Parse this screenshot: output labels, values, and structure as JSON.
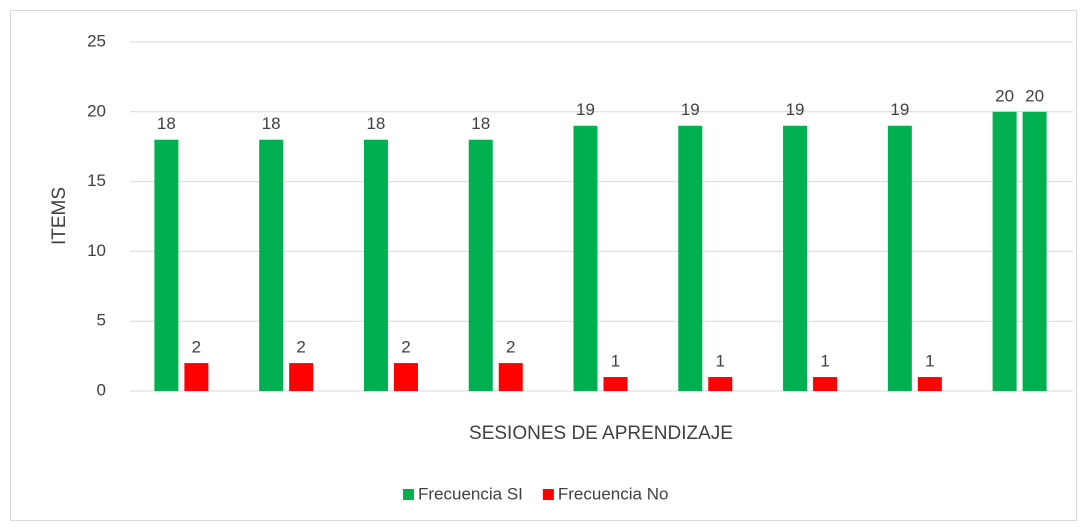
{
  "chart_data": {
    "type": "bar",
    "x_label": "SESIONES DE APRENDIZAJE",
    "y_label": "ITEMS",
    "categories": [
      null,
      null,
      null,
      null,
      null,
      null,
      null,
      null,
      null
    ],
    "series": [
      {
        "name": "Frecuencia SI",
        "color": "#00b050",
        "values": [
          18,
          18,
          18,
          18,
          19,
          19,
          19,
          19,
          20
        ]
      },
      {
        "name": "Frecuencia No",
        "color": "#ff0000",
        "colors": [
          "#ff0000",
          "#ff0000",
          "#ff0000",
          "#ff0000",
          "#ff0000",
          "#ff0000",
          "#ff0000",
          "#ff0000",
          "#00b050"
        ],
        "values": [
          2,
          2,
          2,
          2,
          1,
          1,
          1,
          1,
          20
        ]
      }
    ],
    "ylim": [
      0,
      25
    ],
    "yticks": [
      0,
      5,
      10,
      15,
      20,
      25
    ],
    "grid": true,
    "legend": "bottom"
  }
}
